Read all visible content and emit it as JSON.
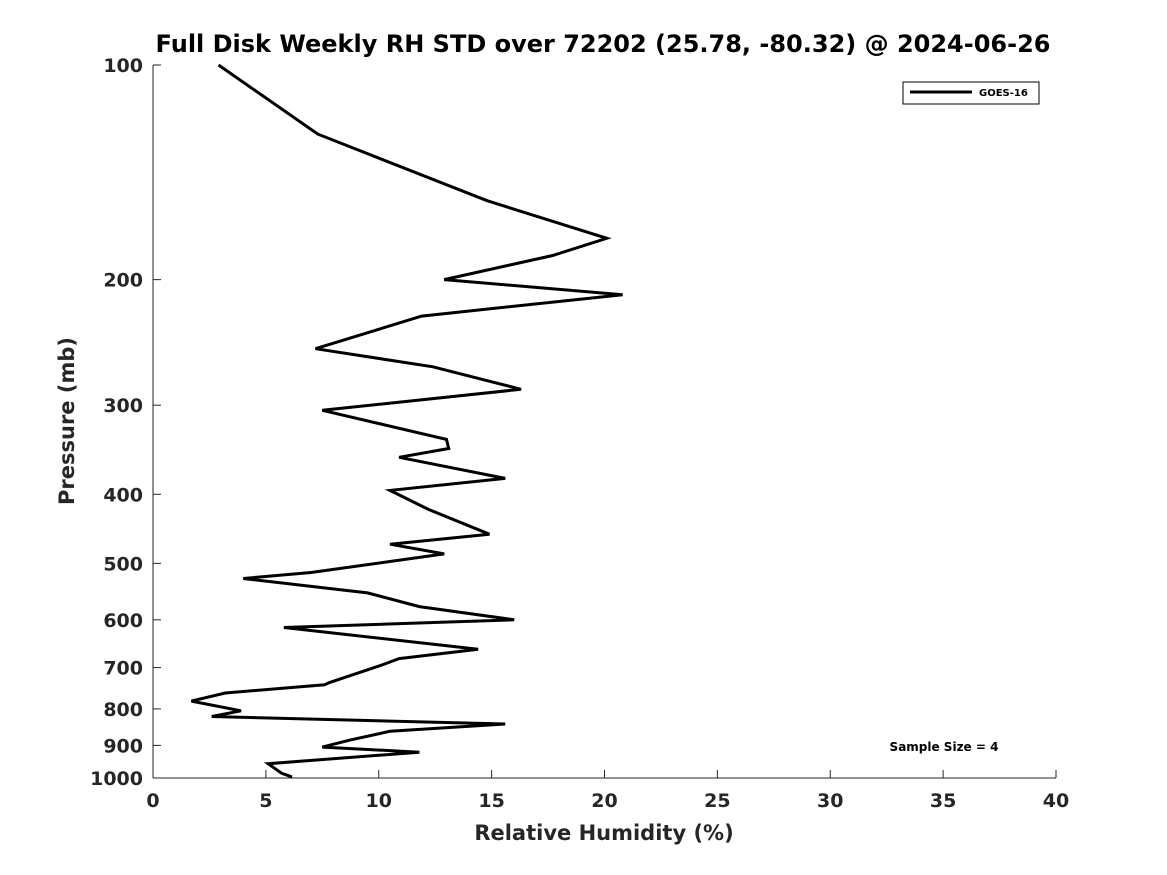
{
  "chart_data": {
    "type": "line",
    "title": "Full Disk Weekly RH STD over 72202 (25.78, -80.32) @ 2024-06-26",
    "xlabel": "Relative Humidity (%)",
    "ylabel": "Pressure (mb)",
    "xlim": [
      0,
      40
    ],
    "ylim": [
      100,
      1000
    ],
    "yscale": "log",
    "y_reversed": true,
    "grid": false,
    "xticks": [
      0,
      5,
      10,
      15,
      20,
      25,
      30,
      35,
      40
    ],
    "yticks": [
      100,
      200,
      300,
      400,
      500,
      600,
      700,
      800,
      900,
      1000
    ],
    "legend_position": "top-right",
    "annotation": "Sample Size = 4",
    "series": [
      {
        "name": "GOES-16",
        "color": "#000000",
        "points": [
          [
            2.9,
            100
          ],
          [
            7.3,
            125
          ],
          [
            14.8,
            155
          ],
          [
            20.1,
            175
          ],
          [
            17.7,
            185
          ],
          [
            12.9,
            200
          ],
          [
            20.8,
            210
          ],
          [
            11.9,
            225
          ],
          [
            7.2,
            250
          ],
          [
            12.4,
            265
          ],
          [
            16.3,
            285
          ],
          [
            7.5,
            305
          ],
          [
            13.0,
            335
          ],
          [
            13.1,
            345
          ],
          [
            10.9,
            355
          ],
          [
            15.6,
            380
          ],
          [
            10.5,
            395
          ],
          [
            12.2,
            420
          ],
          [
            14.9,
            455
          ],
          [
            10.5,
            470
          ],
          [
            12.9,
            485
          ],
          [
            7.0,
            515
          ],
          [
            4.0,
            525
          ],
          [
            9.5,
            550
          ],
          [
            11.8,
            575
          ],
          [
            16.0,
            600
          ],
          [
            5.8,
            615
          ],
          [
            14.4,
            660
          ],
          [
            10.9,
            680
          ],
          [
            10.1,
            695
          ],
          [
            7.8,
            735
          ],
          [
            7.6,
            740
          ],
          [
            3.2,
            760
          ],
          [
            1.7,
            780
          ],
          [
            3.9,
            805
          ],
          [
            2.6,
            820
          ],
          [
            15.6,
            840
          ],
          [
            10.5,
            860
          ],
          [
            8.7,
            885
          ],
          [
            7.5,
            905
          ],
          [
            11.8,
            920
          ],
          [
            5.1,
            955
          ],
          [
            5.7,
            985
          ],
          [
            6.1,
            995
          ],
          [
            6.1,
            1000
          ]
        ]
      }
    ]
  }
}
